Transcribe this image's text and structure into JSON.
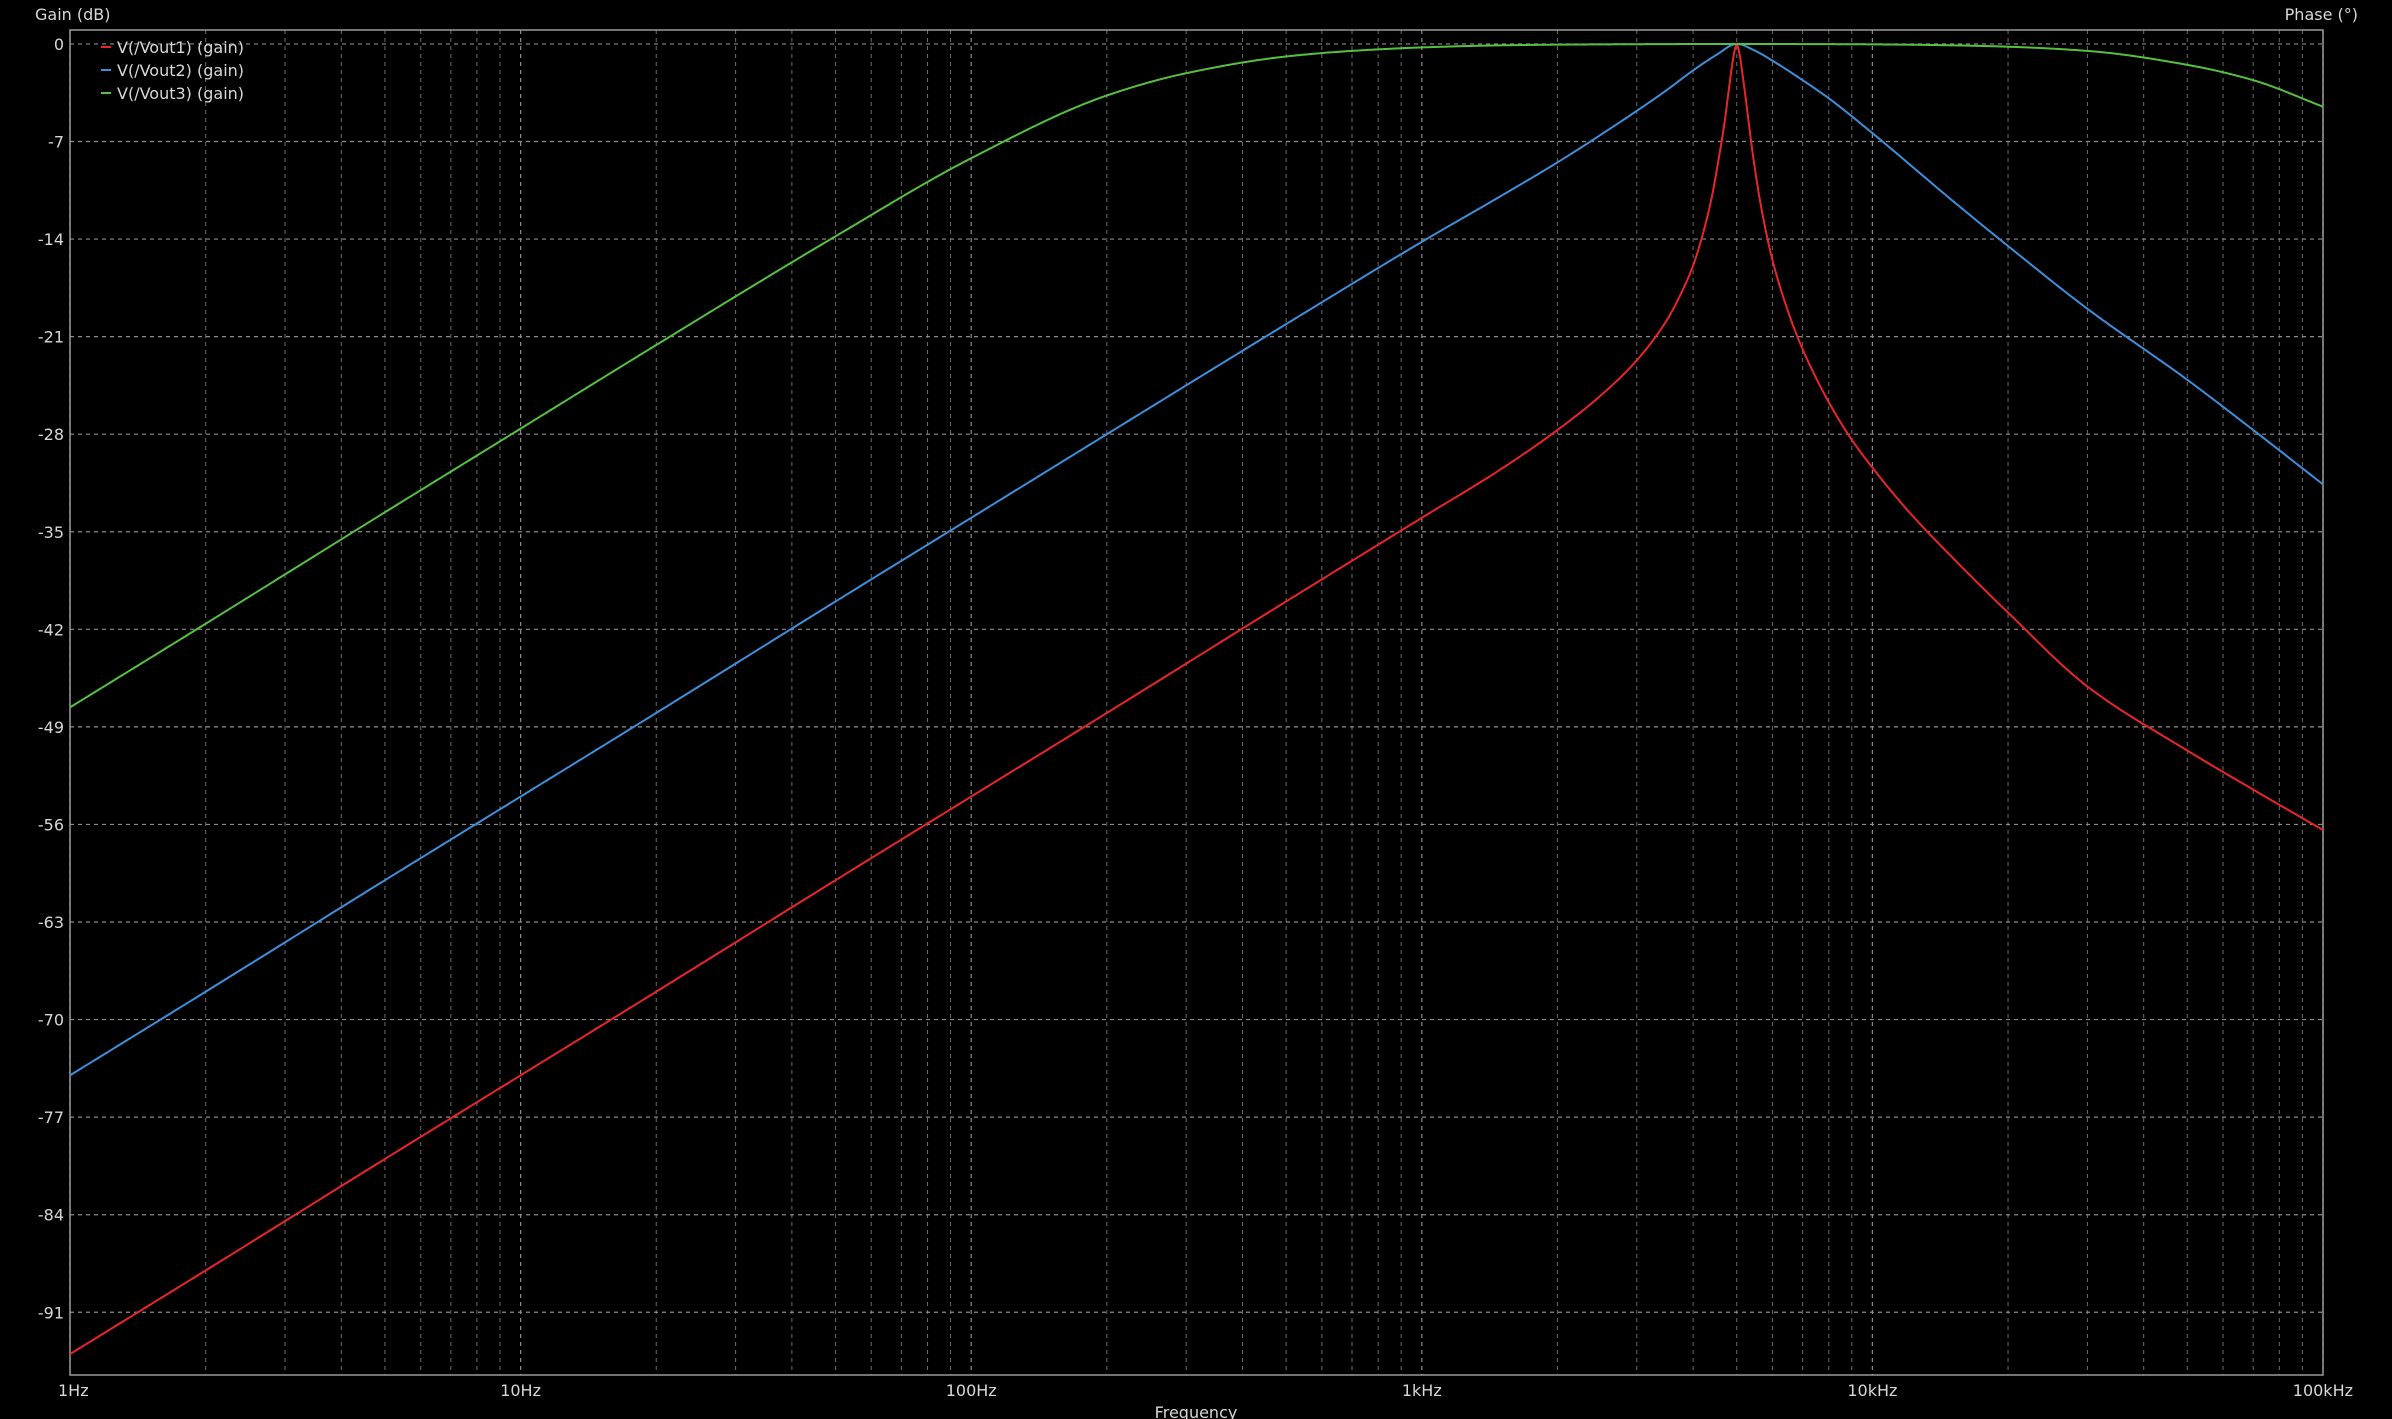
{
  "chart_data": {
    "type": "line",
    "title": "",
    "left_axis_label": "Gain (dB)",
    "right_axis_label": "Phase (°)",
    "xlabel": "Frequency",
    "x_scale": "log",
    "xlim": [
      1,
      100000
    ],
    "ylim": [
      -95.5,
      1
    ],
    "grid": true,
    "legend_position": "top-left",
    "x_ticks": [
      {
        "value": 1,
        "label": "1Hz"
      },
      {
        "value": 10,
        "label": "10Hz"
      },
      {
        "value": 100,
        "label": "100Hz"
      },
      {
        "value": 1000,
        "label": "1kHz"
      },
      {
        "value": 10000,
        "label": "10kHz"
      },
      {
        "value": 100000,
        "label": "100kHz"
      }
    ],
    "y_ticks": [
      {
        "value": 0,
        "label": "0"
      },
      {
        "value": -7,
        "label": "-7"
      },
      {
        "value": -14,
        "label": "-14"
      },
      {
        "value": -21,
        "label": "-21"
      },
      {
        "value": -28,
        "label": "-28"
      },
      {
        "value": -35,
        "label": "-35"
      },
      {
        "value": -42,
        "label": "-42"
      },
      {
        "value": -49,
        "label": "-49"
      },
      {
        "value": -56,
        "label": "-56"
      },
      {
        "value": -63,
        "label": "-63"
      },
      {
        "value": -70,
        "label": "-70"
      },
      {
        "value": -77,
        "label": "-77"
      },
      {
        "value": -84,
        "label": "-84"
      },
      {
        "value": -91,
        "label": "-91"
      }
    ],
    "series": [
      {
        "name": "V(/Vout1) (gain)",
        "color": "#e8262a",
        "x": [
          1,
          2,
          5,
          10,
          20,
          50,
          100,
          200,
          500,
          1000,
          1500,
          2000,
          2500,
          3000,
          3500,
          3800,
          4000,
          4200,
          4400,
          4600,
          4700,
          4800,
          4850,
          4900,
          4950,
          5000,
          5050,
          5100,
          5150,
          5200,
          5300,
          5400,
          5600,
          5800,
          6000,
          6500,
          7000,
          8000,
          9000,
          10000,
          12000,
          15000,
          20000,
          30000,
          50000,
          70000,
          100000
        ],
        "values": [
          -94.0,
          -88.0,
          -80.0,
          -74.0,
          -68.0,
          -60.0,
          -54.0,
          -48.0,
          -40.0,
          -34.0,
          -30.5,
          -27.7,
          -25.2,
          -22.7,
          -19.8,
          -17.6,
          -15.9,
          -13.7,
          -11.0,
          -7.5,
          -5.6,
          -3.3,
          -2.2,
          -1.2,
          -0.4,
          0.0,
          -0.4,
          -1.2,
          -2.2,
          -3.2,
          -5.3,
          -7.4,
          -10.8,
          -13.4,
          -15.5,
          -19.2,
          -21.9,
          -25.7,
          -28.4,
          -30.4,
          -33.5,
          -36.8,
          -40.8,
          -46.1,
          -50.7,
          -53.5,
          -56.4
        ]
      },
      {
        "name": "V(/Vout2) (gain)",
        "color": "#3d8fdc",
        "x": [
          1,
          2,
          5,
          10,
          20,
          50,
          100,
          200,
          500,
          1000,
          1500,
          2000,
          2500,
          3000,
          3500,
          4000,
          4500,
          5000,
          5500,
          6000,
          7000,
          8000,
          10000,
          15000,
          20000,
          30000,
          50000,
          70000,
          100000
        ],
        "values": [
          -74.0,
          -68.0,
          -60.0,
          -54.0,
          -48.0,
          -40.0,
          -34.0,
          -28.0,
          -20.1,
          -14.2,
          -10.9,
          -8.5,
          -6.5,
          -4.8,
          -3.3,
          -1.9,
          -0.8,
          0.0,
          -0.5,
          -1.2,
          -2.6,
          -3.9,
          -6.4,
          -11.2,
          -14.5,
          -19.0,
          -24.1,
          -27.7,
          -31.6
        ]
      },
      {
        "name": "V(/Vout3) (gain)",
        "color": "#56c041",
        "x": [
          1,
          2,
          5,
          10,
          20,
          50,
          100,
          200,
          300,
          500,
          700,
          1000,
          1500,
          2000,
          3000,
          5000,
          7000,
          10000,
          15000,
          20000,
          30000,
          50000,
          70000,
          100000
        ],
        "values": [
          -47.6,
          -41.6,
          -33.6,
          -27.6,
          -21.6,
          -13.8,
          -8.2,
          -3.7,
          -2.1,
          -0.9,
          -0.5,
          -0.25,
          -0.1,
          -0.05,
          -0.02,
          0.0,
          -0.01,
          -0.03,
          -0.1,
          -0.2,
          -0.5,
          -1.5,
          -2.6,
          -4.5
        ]
      }
    ]
  }
}
